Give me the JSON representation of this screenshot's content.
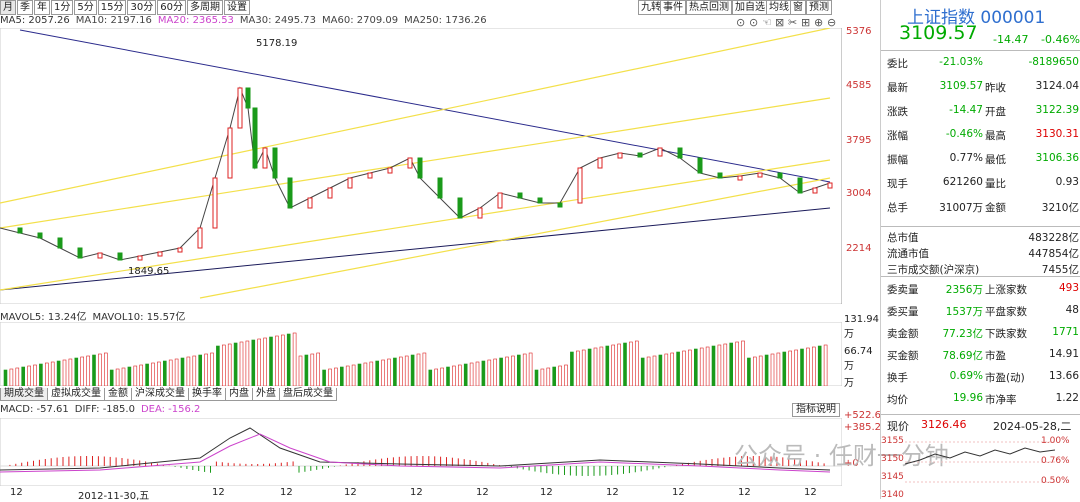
{
  "toolbar": {
    "periods": [
      "月",
      "季",
      "年",
      "1分",
      "5分",
      "15分",
      "30分",
      "60分",
      "多周期",
      "设置"
    ],
    "right_buttons": [
      "九转",
      "事件",
      "热点回测",
      "加自选",
      "均线",
      "窗",
      "预测"
    ]
  },
  "ma_legend": [
    {
      "label": "MA5: 2057.26",
      "color": "#333333"
    },
    {
      "label": "MA10: 2197.16",
      "color": "#444444"
    },
    {
      "label": "MA20: 2365.53",
      "color": "#cc44cc"
    },
    {
      "label": "MA30: 2495.73",
      "color": "#444444"
    },
    {
      "label": "MA60: 2709.09",
      "color": "#444444"
    },
    {
      "label": "MA250: 1736.26",
      "color": "#444444"
    }
  ],
  "price_axis": [
    "5376",
    "4585",
    "3795",
    "3004",
    "2214"
  ],
  "annotations": {
    "high": "5178.19",
    "low": "1849.65",
    "date_marker": "2012-11-30,五"
  },
  "volume_legend": [
    {
      "label": "MAVOL5: 13.24亿",
      "color": "#333333"
    },
    {
      "label": "MAVOL10: 15.57亿",
      "color": "#333333"
    }
  ],
  "volume_axis": [
    "131.94万",
    "66.74万",
    "万"
  ],
  "bottom_tabs": [
    "期成交量",
    "虚拟成交量",
    "金额",
    "沪深成交量",
    "换手率",
    "内盘",
    "外盘",
    "盘后成交量"
  ],
  "macd_legend": [
    {
      "label": "MACD: -57.61",
      "color": "#333333"
    },
    {
      "label": "DIFF: -185.0",
      "color": "#333333"
    },
    {
      "label": "DEA: -156.2",
      "color": "#cc44cc"
    }
  ],
  "macd_axis": [
    "+522.6",
    "+385.2",
    "+0"
  ],
  "indicator_button": "指标说明",
  "x_ticks": [
    "12",
    "2012-11-30,五",
    "12",
    "12",
    "12",
    "12",
    "12",
    "12",
    "12",
    "12",
    "12",
    "12"
  ],
  "watermark": "公众号 · 任财一分钟",
  "panel": {
    "title": "上证指数 000001",
    "price": "3109.57",
    "change": "-14.47",
    "change_pct": "-0.46%",
    "rows1": [
      {
        "l": "委比",
        "v1": "-21.03%",
        "v1c": "grn",
        "v2": "-8189650",
        "v2c": "grn"
      },
      {
        "l": "最新",
        "v1": "3109.57",
        "v1c": "grn",
        "l2": "昨收",
        "v2": "3124.04",
        "v2c": ""
      },
      {
        "l": "涨跌",
        "v1": "-14.47",
        "v1c": "grn",
        "l2": "开盘",
        "v2": "3122.39",
        "v2c": "grn"
      },
      {
        "l": "涨幅",
        "v1": "-0.46%",
        "v1c": "grn",
        "l2": "最高",
        "v2": "3130.31",
        "v2c": "red"
      },
      {
        "l": "振幅",
        "v1": "0.77%",
        "v1c": "",
        "l2": "最低",
        "v2": "3106.36",
        "v2c": "grn"
      },
      {
        "l": "现手",
        "v1": "621260",
        "v1c": "",
        "l2": "量比",
        "v2": "0.93",
        "v2c": ""
      },
      {
        "l": "总手",
        "v1": "31007万",
        "v1c": "",
        "l2": "金额",
        "v2": "3210亿",
        "v2c": ""
      }
    ],
    "rows2": [
      {
        "l": "总市值",
        "v": "483228亿"
      },
      {
        "l": "流通市值",
        "v": "447854亿"
      },
      {
        "l": "三市成交额(沪深京)",
        "v": "7455亿"
      }
    ],
    "rows3": [
      {
        "l": "委卖量",
        "v1": "2356万",
        "v1c": "grn",
        "l2": "上涨家数",
        "v2": "493",
        "v2c": "red"
      },
      {
        "l": "委买量",
        "v1": "1537万",
        "v1c": "grn",
        "l2": "平盘家数",
        "v2": "48",
        "v2c": ""
      },
      {
        "l": "卖金额",
        "v1": "77.23亿",
        "v1c": "grn",
        "l2": "下跌家数",
        "v2": "1771",
        "v2c": "grn"
      },
      {
        "l": "买金额",
        "v1": "78.69亿",
        "v1c": "grn",
        "l2": "市盈",
        "v2": "14.91",
        "v2c": ""
      },
      {
        "l": "换手",
        "v1": "0.69%",
        "v1c": "grn",
        "l2": "市盈(动)",
        "v2": "13.66",
        "v2c": ""
      },
      {
        "l": "均价",
        "v1": "19.96",
        "v1c": "grn",
        "l2": "市净率",
        "v2": "1.22",
        "v2c": ""
      }
    ],
    "current_label": "现价",
    "current_value": "3126.46",
    "current_date": "2024-05-28,二",
    "mini_axis": [
      "3155",
      "3150",
      "3145",
      "3140"
    ],
    "mini_pct": [
      "1.00%",
      "0.76%",
      "0.50%"
    ]
  }
}
